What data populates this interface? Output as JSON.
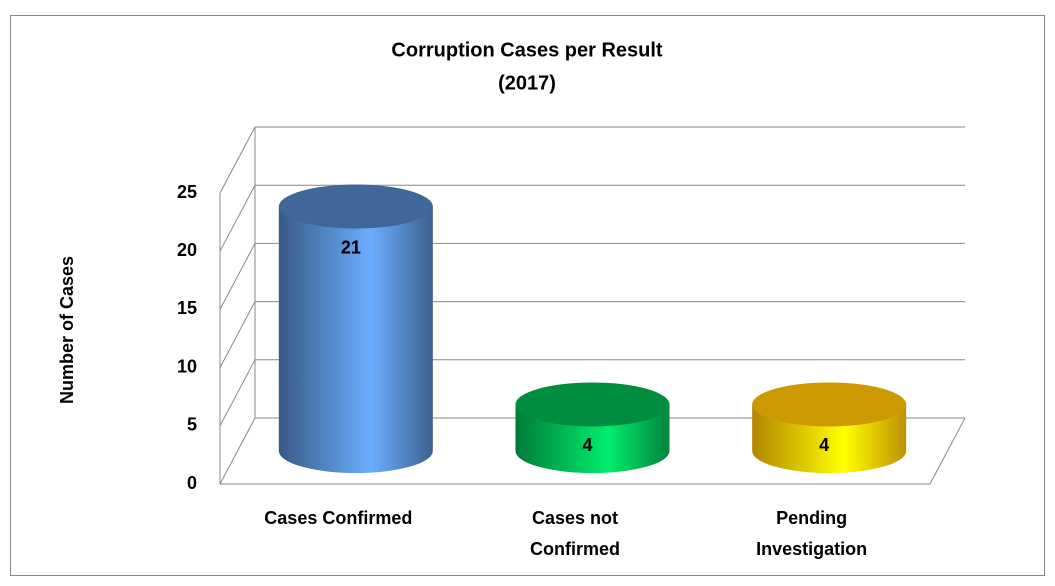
{
  "chart_data": {
    "type": "bar3d",
    "title": "Corruption Cases per Result",
    "subtitle": "(2017)",
    "y_label": "Number of Cases",
    "categories": [
      "Cases Confirmed",
      "Cases not Confirmed",
      "Pending Investigation"
    ],
    "values": [
      21,
      4,
      4
    ],
    "colors": [
      "#4f81bd",
      "#00b050",
      "#ffc000"
    ],
    "ylim": [
      0,
      25
    ],
    "yticks": [
      0,
      5,
      10,
      15,
      20,
      25
    ],
    "grid": true
  }
}
